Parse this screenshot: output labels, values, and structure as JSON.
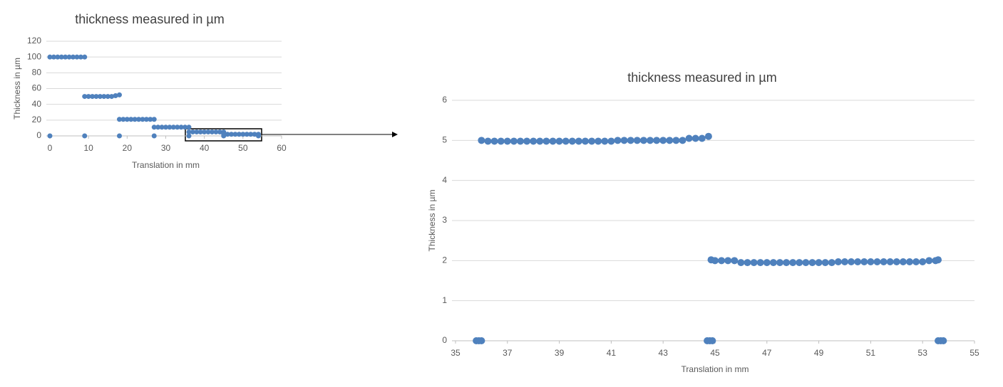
{
  "chart_data": [
    {
      "type": "scatter",
      "title": "thickness measured  in µm",
      "xlabel": "Translation in mm",
      "ylabel": "Thickness in µm",
      "xlim": [
        0,
        60
      ],
      "xticks": [
        0,
        10,
        20,
        30,
        40,
        50,
        60
      ],
      "ylim": [
        0,
        120
      ],
      "yticks": [
        0,
        20,
        40,
        60,
        80,
        100,
        120
      ],
      "grid": true,
      "series": [
        {
          "color": "#4f81bd",
          "x": [
            0,
            1,
            2,
            3,
            4,
            5,
            6,
            7,
            8,
            9,
            9,
            10,
            11,
            12,
            13,
            14,
            15,
            16,
            17,
            18,
            18,
            19,
            20,
            21,
            22,
            23,
            24,
            25,
            26,
            27,
            27,
            28,
            29,
            30,
            31,
            32,
            33,
            34,
            35,
            36,
            36,
            37,
            38,
            39,
            40,
            41,
            42,
            43,
            44,
            45,
            45,
            46,
            47,
            48,
            49,
            50,
            51,
            52,
            53,
            54,
            0,
            9,
            18,
            27,
            36,
            45,
            54
          ],
          "values": [
            100,
            100,
            100,
            100,
            100,
            100,
            100,
            100,
            100,
            100,
            50,
            50,
            50,
            50,
            50,
            50,
            50,
            50,
            51,
            52,
            21,
            21,
            21,
            21,
            21,
            21,
            21,
            21,
            21,
            21,
            11,
            11,
            11,
            11,
            11,
            11,
            11,
            11,
            11,
            11,
            5,
            5,
            5,
            5,
            5,
            5,
            5,
            5,
            5,
            5,
            2,
            2,
            2,
            2,
            2,
            2,
            2,
            2,
            2,
            2,
            0,
            0,
            0,
            0,
            0,
            0,
            0
          ]
        }
      ]
    },
    {
      "type": "scatter",
      "title": "thickness measured  in µm",
      "xlabel": "Translation in mm",
      "ylabel": "Thickness in µm",
      "xlim": [
        35,
        55
      ],
      "xticks": [
        35,
        37,
        39,
        41,
        43,
        45,
        47,
        49,
        51,
        53,
        55
      ],
      "ylim": [
        0,
        6
      ],
      "yticks": [
        0,
        1,
        2,
        3,
        4,
        5,
        6
      ],
      "grid": true,
      "series": [
        {
          "color": "#4f81bd",
          "x": [
            36,
            36.25,
            36.5,
            36.75,
            37,
            37.25,
            37.5,
            37.75,
            38,
            38.25,
            38.5,
            38.75,
            39,
            39.25,
            39.5,
            39.75,
            40,
            40.25,
            40.5,
            40.75,
            41,
            41.25,
            41.5,
            41.75,
            42,
            42.25,
            42.5,
            42.75,
            43,
            43.25,
            43.5,
            43.75,
            44,
            44.25,
            44.5,
            44.75,
            44.85,
            45,
            45.25,
            45.5,
            45.75,
            46,
            46.25,
            46.5,
            46.75,
            47,
            47.25,
            47.5,
            47.75,
            48,
            48.25,
            48.5,
            48.75,
            49,
            49.25,
            49.5,
            49.75,
            50,
            50.25,
            50.5,
            50.75,
            51,
            51.25,
            51.5,
            51.75,
            52,
            52.25,
            52.5,
            52.75,
            53,
            53.25,
            53.5,
            53.6,
            35.8,
            35.9,
            36,
            44.7,
            44.8,
            44.9,
            53.6,
            53.7,
            53.8
          ],
          "values": [
            5,
            4.98,
            4.98,
            4.98,
            4.98,
            4.98,
            4.98,
            4.98,
            4.98,
            4.98,
            4.98,
            4.98,
            4.98,
            4.98,
            4.98,
            4.98,
            4.98,
            4.98,
            4.98,
            4.98,
            4.98,
            5,
            5,
            5,
            5,
            5,
            5,
            5,
            5,
            5,
            5,
            5,
            5.05,
            5.05,
            5.05,
            5.1,
            2.02,
            2,
            2,
            2,
            2,
            1.95,
            1.95,
            1.95,
            1.95,
            1.95,
            1.95,
            1.95,
            1.95,
            1.95,
            1.95,
            1.95,
            1.95,
            1.95,
            1.95,
            1.95,
            1.97,
            1.97,
            1.97,
            1.97,
            1.97,
            1.97,
            1.97,
            1.97,
            1.97,
            1.97,
            1.97,
            1.97,
            1.97,
            1.97,
            2,
            2,
            2.02,
            0,
            0,
            0,
            0,
            0,
            0,
            0,
            0,
            0
          ]
        }
      ]
    }
  ]
}
